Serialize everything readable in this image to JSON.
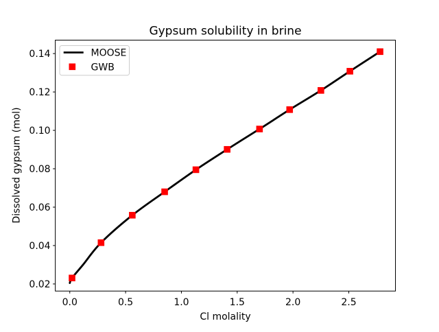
{
  "figure": {
    "background": "#ffffff"
  },
  "chart_data": {
    "type": "line",
    "title": "Gypsum solubility in brine",
    "xlabel": "Cl molality",
    "ylabel": "Dissolved gypsum (mol)",
    "xlim": [
      -0.13,
      2.918
    ],
    "ylim": [
      0.0163,
      0.147
    ],
    "grid": false,
    "background": "#ffffff",
    "xticks": {
      "values": [
        0.0,
        0.5,
        1.0,
        1.5,
        2.0,
        2.5
      ],
      "labels": [
        "0.0",
        "0.5",
        "1.0",
        "1.5",
        "2.0",
        "2.5"
      ]
    },
    "yticks": {
      "values": [
        0.02,
        0.04,
        0.06,
        0.08,
        0.1,
        0.12,
        0.14
      ],
      "labels": [
        "0.02",
        "0.04",
        "0.06",
        "0.08",
        "0.10",
        "0.12",
        "0.14"
      ]
    },
    "legend": {
      "position": "upper left",
      "entries": [
        {
          "label": "MOOSE",
          "marker": "line",
          "color": "#000000"
        },
        {
          "label": "GWB",
          "marker": "square",
          "color": "#ff0000"
        }
      ]
    },
    "series": [
      {
        "name": "MOOSE",
        "type": "line",
        "color": "#000000",
        "line_width": 2.8,
        "points": [
          [
            0.0,
            0.0205
          ],
          [
            0.02,
            0.0231
          ],
          [
            0.12,
            0.0301
          ],
          [
            0.28,
            0.0415
          ],
          [
            0.56,
            0.0558
          ],
          [
            0.85,
            0.068
          ],
          [
            1.13,
            0.0795
          ],
          [
            1.41,
            0.0901
          ],
          [
            1.7,
            0.1007
          ],
          [
            1.97,
            0.1108
          ],
          [
            2.25,
            0.1208
          ],
          [
            2.51,
            0.1308
          ],
          [
            2.78,
            0.141
          ]
        ]
      },
      {
        "name": "GWB",
        "type": "scatter",
        "marker": "square",
        "color": "#ff0000",
        "marker_size": 9.6,
        "points": [
          [
            0.02,
            0.0231
          ],
          [
            0.28,
            0.0415
          ],
          [
            0.56,
            0.0558
          ],
          [
            0.85,
            0.068
          ],
          [
            1.13,
            0.0795
          ],
          [
            1.41,
            0.0901
          ],
          [
            1.7,
            0.1007
          ],
          [
            1.97,
            0.1108
          ],
          [
            2.25,
            0.1208
          ],
          [
            2.51,
            0.1308
          ],
          [
            2.78,
            0.141
          ]
        ]
      }
    ]
  }
}
